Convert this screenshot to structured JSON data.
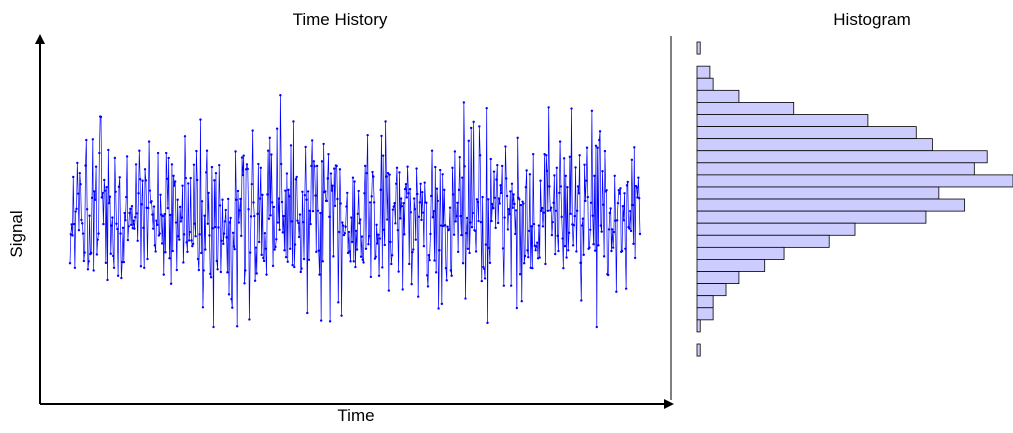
{
  "chart_data": [
    {
      "type": "line",
      "title": "Time History",
      "xlabel": "Time",
      "ylabel": "Signal",
      "markers": true,
      "grid": false,
      "legend": "none",
      "ylim": [
        -5,
        5
      ],
      "noise_std": 1.1,
      "sample_count": 700,
      "x": [],
      "series": [
        {
          "values": [],
          "color": "#0000ff"
        }
      ]
    },
    {
      "type": "bar",
      "orientation": "horizontal",
      "title": "Histogram",
      "xlabel": "",
      "ylabel": "",
      "grid": false,
      "legend": "none",
      "bin_edges": [
        4.55,
        4.15,
        3.75,
        3.35,
        2.95,
        2.55,
        2.15,
        1.75,
        1.35,
        0.95,
        0.55,
        0.15,
        -0.25,
        -0.65,
        -1.05,
        -1.45,
        -1.85,
        -2.25,
        -2.65,
        -3.05,
        -3.45,
        -3.85,
        -4.25,
        -4.65,
        -5.05,
        -5.45
      ],
      "values": [
        1,
        0,
        4,
        5,
        13,
        30,
        53,
        68,
        73,
        90,
        86,
        98,
        75,
        83,
        71,
        49,
        41,
        27,
        21,
        13,
        9,
        5,
        5,
        1,
        0,
        1
      ],
      "color": "#ccccff",
      "edge_color": "#000000"
    }
  ]
}
